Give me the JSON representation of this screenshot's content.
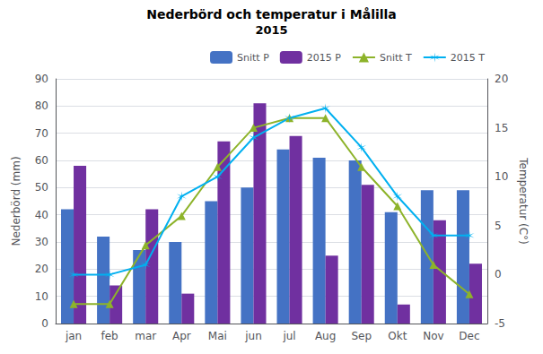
{
  "chart_data": {
    "type": "bar",
    "title": "Nederbörd och temperatur i Målilla",
    "subtitle": "2015",
    "categories": [
      "jan",
      "feb",
      "mar",
      "Apr",
      "Mai",
      "jun",
      "jul",
      "Aug",
      "Sep",
      "Okt",
      "Nov",
      "Dec"
    ],
    "series": [
      {
        "name": "Snitt P",
        "type": "bar",
        "color": "#4472c4",
        "values": [
          42,
          32,
          27,
          30,
          45,
          50,
          64,
          61,
          60,
          41,
          49,
          49
        ]
      },
      {
        "name": "2015 P",
        "type": "bar",
        "color": "#7030a0",
        "values": [
          58,
          14,
          42,
          11,
          67,
          81,
          69,
          25,
          51,
          7,
          38,
          22
        ]
      },
      {
        "name": "Snitt T",
        "type": "line",
        "axis": "y2",
        "color": "#8db32a",
        "marker": "triangle",
        "values": [
          -3,
          -3,
          3,
          6,
          11,
          15,
          16,
          16,
          11,
          7,
          1,
          -2
        ]
      },
      {
        "name": "2015 T",
        "type": "line",
        "axis": "y2",
        "color": "#00b0f0",
        "marker": "asterisk",
        "values": [
          0,
          0,
          1,
          8,
          10,
          14,
          16,
          17,
          13,
          8,
          4,
          4
        ]
      }
    ],
    "ylabel": "Nederbörd (mm)",
    "y2label": "Temperatur (C°)",
    "ylim": [
      0,
      90
    ],
    "yticks": [
      0,
      10,
      20,
      30,
      40,
      50,
      60,
      70,
      80,
      90
    ],
    "y2lim": [
      -5,
      20
    ],
    "y2ticks": [
      -5,
      0,
      5,
      10,
      15,
      20
    ],
    "grid": true,
    "legend": "upper right"
  }
}
